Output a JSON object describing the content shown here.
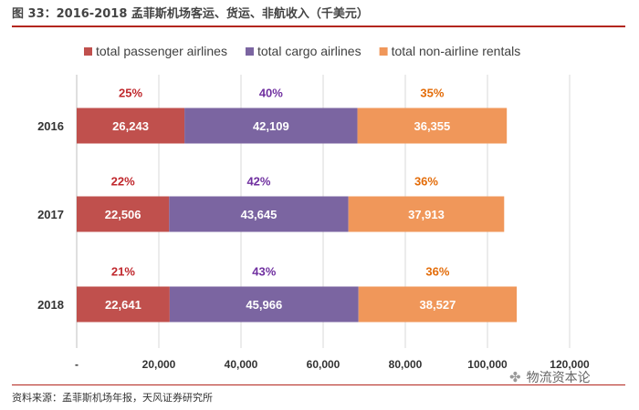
{
  "title": "图 33：2016-2018 孟菲斯机场客运、货运、非航收入（千美元）",
  "source": "资料来源：孟菲斯机场年报，天风证券研究所",
  "watermark": {
    "text": "物流资本论",
    "icon": "wechat-icon"
  },
  "chart_data": {
    "type": "bar",
    "orientation": "horizontal",
    "stacked": true,
    "categories": [
      "2016",
      "2017",
      "2018"
    ],
    "series": [
      {
        "name": "total passenger airlines",
        "color": "#c0504d",
        "values": [
          26243,
          22506,
          22641
        ],
        "value_labels": [
          "26,243",
          "22,506",
          "22,641"
        ],
        "percent_labels": [
          "25%",
          "22%",
          "21%"
        ]
      },
      {
        "name": "total cargo airlines",
        "color": "#7b65a1",
        "values": [
          42109,
          43645,
          45966
        ],
        "value_labels": [
          "42,109",
          "43,645",
          "45,966"
        ],
        "percent_labels": [
          "40%",
          "42%",
          "43%"
        ]
      },
      {
        "name": "total non-airline rentals",
        "color": "#f0975a",
        "values": [
          36355,
          37913,
          38527
        ],
        "value_labels": [
          "36,355",
          "37,913",
          "38,527"
        ],
        "percent_labels": [
          "35%",
          "36%",
          "36%"
        ]
      }
    ],
    "percent_label_colors": [
      "#c0282d",
      "#7030a0",
      "#e36c09"
    ],
    "xlim": [
      0,
      120000
    ],
    "xticks": [
      0,
      20000,
      40000,
      60000,
      80000,
      100000,
      120000
    ],
    "xtick_labels": [
      "-",
      "20,000",
      "40,000",
      "60,000",
      "80,000",
      "100,000",
      "120,000"
    ],
    "gridlines": "vertical",
    "legend_position": "top"
  }
}
